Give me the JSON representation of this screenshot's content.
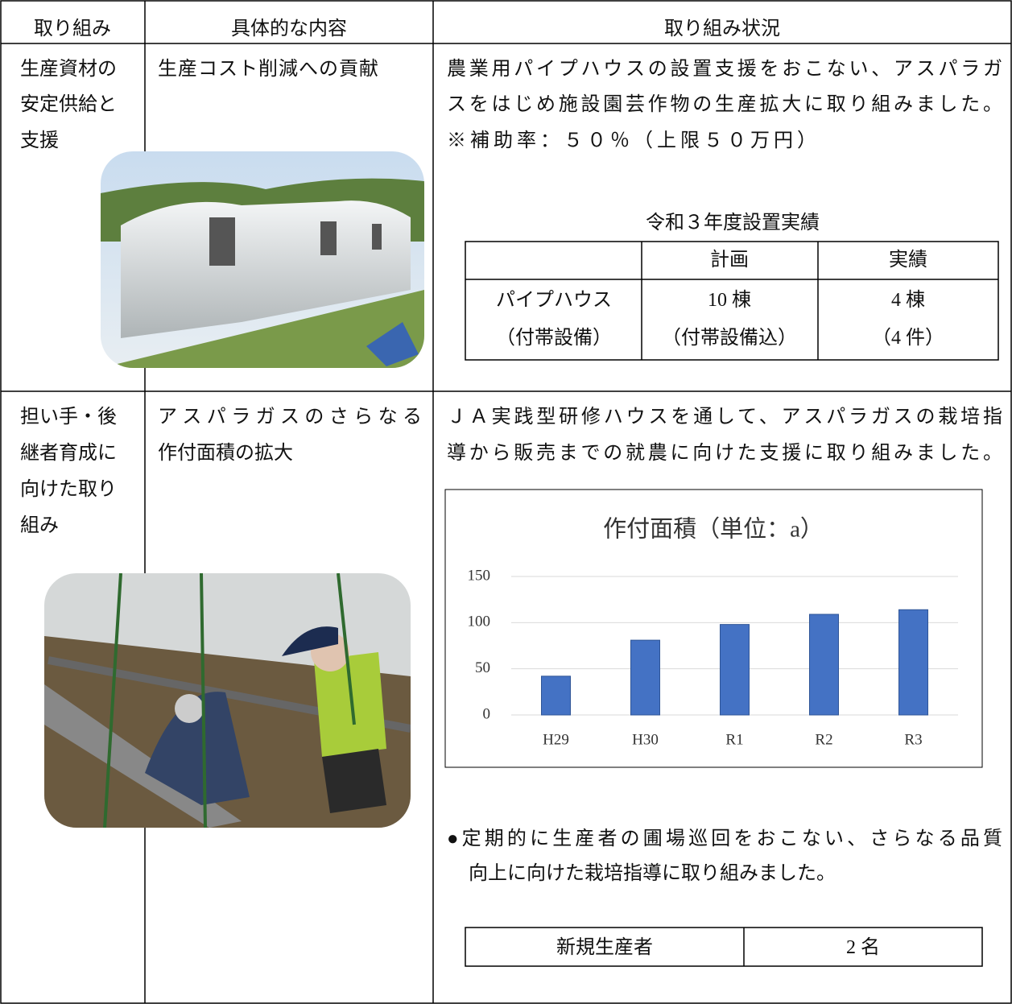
{
  "table": {
    "headers": [
      "取り組み",
      "具体的な内容",
      "取り組み状況"
    ],
    "rows": [
      {
        "initiative": [
          "生産資材の",
          "安定供給と",
          "支援"
        ],
        "content": [
          "生産コスト削減への貢献"
        ],
        "status": {
          "text": [
            "農業用パイプハウスの設置支援をおこない、アスパラガ",
            "スをはじめ施設園芸作物の生産拡大に取り組みました。",
            "※補助率：５０％（上限５０万円）"
          ],
          "results_title": "令和３年度設置実績",
          "results": {
            "headers": [
              "計画",
              "実績"
            ],
            "rows": [
              [
                "パイプハウス",
                "10 棟",
                "4 棟"
              ],
              [
                "（付帯設備）",
                "（付帯設備込）",
                "（4 件）"
              ]
            ]
          }
        }
      },
      {
        "initiative": [
          "担い手・後",
          "継者育成に",
          "向けた取り",
          "組み"
        ],
        "content": [
          "アスパラガスのさらなる",
          "作付面積の拡大"
        ],
        "status": {
          "text": [
            "ＪＡ実践型研修ハウスを通して、アスパラガスの栽培指",
            "導から販売までの就農に向けた支援に取り組みました。"
          ],
          "bullet": [
            "●定期的に生産者の圃場巡回をおこない、さらなる品質",
            "向上に向けた栽培指導に取り組みました。"
          ],
          "summary": [
            "新規生産者",
            "2 名"
          ]
        }
      }
    ]
  },
  "chart_data": {
    "type": "bar",
    "title": "作付面積（単位：a）",
    "categories": [
      "H29",
      "H30",
      "R1",
      "R2",
      "R3"
    ],
    "values": [
      42,
      81,
      98,
      109,
      114
    ],
    "color": "#4472c4",
    "ylim": [
      0,
      150
    ],
    "yticks": [
      0,
      50,
      100,
      150
    ],
    "grid": true
  }
}
